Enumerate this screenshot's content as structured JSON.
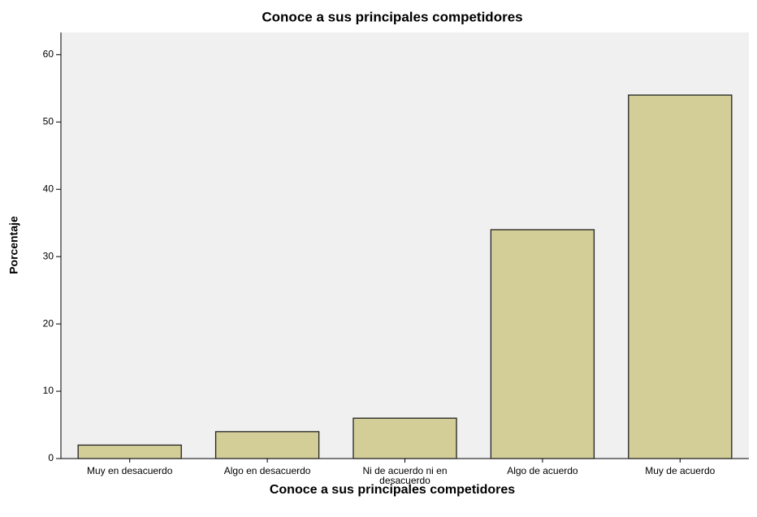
{
  "chart_data": {
    "type": "bar",
    "title": "Conoce a sus principales competidores",
    "x_label": "Conoce a sus principales competidores",
    "y_label": "Porcentaje",
    "categories": [
      "Muy en desacuerdo",
      "Algo en desacuerdo",
      "Ni de acuerdo ni en desacuerdo",
      "Algo de acuerdo",
      "Muy de acuerdo"
    ],
    "values": [
      2,
      4,
      6,
      34,
      54
    ],
    "color": "#d3ce97",
    "ylim": [
      0,
      63.3
    ],
    "yticks": [
      0,
      10,
      20,
      30,
      40,
      50,
      60
    ],
    "grid": false
  }
}
